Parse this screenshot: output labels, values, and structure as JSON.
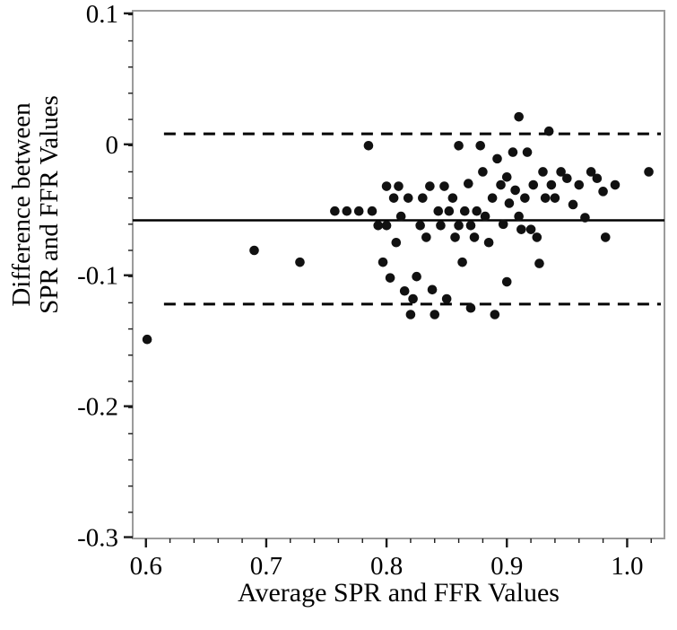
{
  "figure": {
    "background": "#ffffff",
    "frame_color": "#9b9b9b",
    "tick_color": "#1a1a1a",
    "text_color": "#000000"
  },
  "chart_data": {
    "type": "scatter",
    "title": "",
    "xlabel": "Average SPR and FFR Values",
    "ylabel": "Difference between SPR and FFR Values",
    "ylabel_lines": [
      "Difference between",
      "SPR and FFR Values"
    ],
    "xlim": [
      0.589,
      1.031
    ],
    "ylim": [
      -0.301,
      0.102
    ],
    "grid": false,
    "legend": "none",
    "marker_color": "#111111",
    "line_color": "#000000",
    "x_ticks": [
      {
        "value": 0.6,
        "label": "0.6"
      },
      {
        "value": 0.7,
        "label": "0.7"
      },
      {
        "value": 0.8,
        "label": "0.8"
      },
      {
        "value": 0.9,
        "label": "0.9"
      },
      {
        "value": 1.0,
        "label": "1.0"
      }
    ],
    "y_ticks": [
      {
        "value": 0.1,
        "label": "0.1"
      },
      {
        "value": 0.0,
        "label": "0"
      },
      {
        "value": -0.1,
        "label": "-0.1"
      },
      {
        "value": -0.2,
        "label": "-0.2"
      },
      {
        "value": -0.3,
        "label": "-0.3"
      }
    ],
    "x_minor_step": 0.02,
    "y_minor_step": 0.02,
    "lines": [
      {
        "name": "mean-difference",
        "value": -0.058,
        "style": "solid",
        "x_start": 0.589,
        "x_end": 1.031
      },
      {
        "name": "upper-limit-of-agreement",
        "value": 0.008,
        "style": "dashed",
        "x_start": 0.615,
        "x_end": 1.028
      },
      {
        "name": "lower-limit-of-agreement",
        "value": -0.122,
        "style": "dashed",
        "x_start": 0.615,
        "x_end": 1.028
      }
    ],
    "points": [
      [
        0.601,
        -0.149
      ],
      [
        0.69,
        -0.081
      ],
      [
        0.728,
        -0.09
      ],
      [
        0.757,
        -0.051
      ],
      [
        0.767,
        -0.051
      ],
      [
        0.777,
        -0.051
      ],
      [
        0.785,
        -0.001
      ],
      [
        0.788,
        -0.051
      ],
      [
        0.793,
        -0.062
      ],
      [
        0.797,
        -0.09
      ],
      [
        0.8,
        -0.032
      ],
      [
        0.8,
        -0.062
      ],
      [
        0.803,
        -0.102
      ],
      [
        0.806,
        -0.041
      ],
      [
        0.808,
        -0.075
      ],
      [
        0.81,
        -0.032
      ],
      [
        0.812,
        -0.055
      ],
      [
        0.815,
        -0.112
      ],
      [
        0.818,
        -0.041
      ],
      [
        0.82,
        -0.13
      ],
      [
        0.822,
        -0.118
      ],
      [
        0.825,
        -0.101
      ],
      [
        0.828,
        -0.062
      ],
      [
        0.83,
        -0.041
      ],
      [
        0.833,
        -0.071
      ],
      [
        0.836,
        -0.032
      ],
      [
        0.838,
        -0.111
      ],
      [
        0.84,
        -0.13
      ],
      [
        0.843,
        -0.051
      ],
      [
        0.845,
        -0.062
      ],
      [
        0.848,
        -0.032
      ],
      [
        0.85,
        -0.118
      ],
      [
        0.852,
        -0.051
      ],
      [
        0.855,
        -0.041
      ],
      [
        0.857,
        -0.071
      ],
      [
        0.86,
        -0.001
      ],
      [
        0.86,
        -0.062
      ],
      [
        0.863,
        -0.09
      ],
      [
        0.865,
        -0.051
      ],
      [
        0.868,
        -0.03
      ],
      [
        0.87,
        -0.062
      ],
      [
        0.87,
        -0.125
      ],
      [
        0.873,
        -0.071
      ],
      [
        0.875,
        -0.051
      ],
      [
        0.878,
        -0.001
      ],
      [
        0.88,
        -0.021
      ],
      [
        0.882,
        -0.055
      ],
      [
        0.885,
        -0.075
      ],
      [
        0.888,
        -0.041
      ],
      [
        0.89,
        -0.13
      ],
      [
        0.892,
        -0.011
      ],
      [
        0.895,
        -0.031
      ],
      [
        0.897,
        -0.061
      ],
      [
        0.9,
        -0.105
      ],
      [
        0.9,
        -0.025
      ],
      [
        0.902,
        -0.045
      ],
      [
        0.905,
        -0.006
      ],
      [
        0.907,
        -0.035
      ],
      [
        0.91,
        0.021
      ],
      [
        0.91,
        -0.055
      ],
      [
        0.912,
        -0.065
      ],
      [
        0.915,
        -0.041
      ],
      [
        0.917,
        -0.006
      ],
      [
        0.92,
        -0.065
      ],
      [
        0.922,
        -0.031
      ],
      [
        0.925,
        -0.071
      ],
      [
        0.927,
        -0.091
      ],
      [
        0.93,
        -0.021
      ],
      [
        0.932,
        -0.041
      ],
      [
        0.935,
        0.01
      ],
      [
        0.937,
        -0.031
      ],
      [
        0.94,
        -0.041
      ],
      [
        0.945,
        -0.021
      ],
      [
        0.95,
        -0.026
      ],
      [
        0.955,
        -0.046
      ],
      [
        0.96,
        -0.031
      ],
      [
        0.965,
        -0.056
      ],
      [
        0.97,
        -0.021
      ],
      [
        0.975,
        -0.026
      ],
      [
        0.98,
        -0.036
      ],
      [
        0.982,
        -0.071
      ],
      [
        0.99,
        -0.031
      ],
      [
        1.018,
        -0.021
      ]
    ]
  }
}
